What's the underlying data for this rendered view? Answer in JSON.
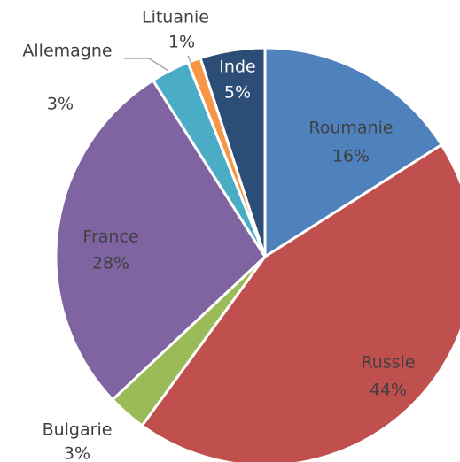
{
  "chart_data": {
    "type": "pie",
    "categories": [
      "Roumanie",
      "Russie",
      "Bulgarie",
      "France",
      "Allemagne",
      "Lituanie",
      "Inde"
    ],
    "values": [
      16,
      44,
      3,
      28,
      3,
      1,
      5
    ],
    "value_labels": [
      "16%",
      "44%",
      "3%",
      "28%",
      "3%",
      "1%",
      "5%"
    ],
    "colors": [
      "#4f81bd",
      "#c0504d",
      "#9bbb59",
      "#8064a2",
      "#4bacc6",
      "#f79646",
      "#2c4d75"
    ]
  }
}
